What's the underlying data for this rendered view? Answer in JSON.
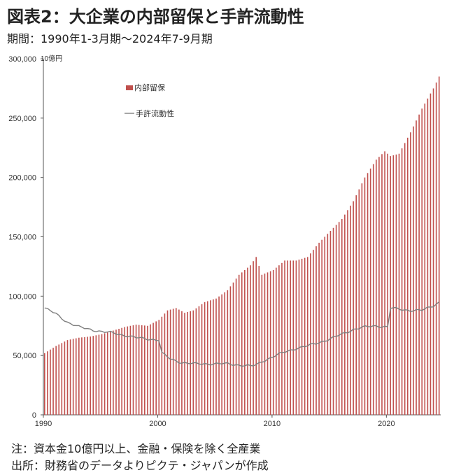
{
  "header": {
    "title": "図表2：大企業の内部留保と手許流動性",
    "subtitle": "期間：1990年1-3月期～2024年7-9月期"
  },
  "footer": {
    "note1": "注：資本金10億円以上、金融・保険を除く全産業",
    "note2": "出所：財務省のデータよりピクテ・ジャパンが作成"
  },
  "chart_data": {
    "type": "bar",
    "unit_label": "10億円",
    "ylim": [
      0,
      300000
    ],
    "y_ticks": [
      0,
      50000,
      100000,
      150000,
      200000,
      250000,
      300000
    ],
    "y_tick_labels": [
      "0",
      "50,000",
      "100,000",
      "150,000",
      "200,000",
      "250,000",
      "300,000"
    ],
    "x_range": [
      1990,
      2024.75
    ],
    "x_ticks": [
      1990,
      2000,
      2010,
      2020
    ],
    "x_tick_labels": [
      "1990",
      "2000",
      "2010",
      "2020"
    ],
    "legend_position": "top-left",
    "series": [
      {
        "name": "内部留保",
        "kind": "bar",
        "color": "#c0504d",
        "keypoints": [
          [
            1990.0,
            52000
          ],
          [
            1991.0,
            58000
          ],
          [
            1992.0,
            63000
          ],
          [
            1993.0,
            65000
          ],
          [
            1994.0,
            66000
          ],
          [
            1995.0,
            68000
          ],
          [
            1996.0,
            71000
          ],
          [
            1997.0,
            74000
          ],
          [
            1998.0,
            76000
          ],
          [
            1999.0,
            75000
          ],
          [
            2000.0,
            80000
          ],
          [
            2000.75,
            88000
          ],
          [
            2001.5,
            90000
          ],
          [
            2002.25,
            86000
          ],
          [
            2003.0,
            88000
          ],
          [
            2004.0,
            95000
          ],
          [
            2005.0,
            98000
          ],
          [
            2006.0,
            105000
          ],
          [
            2007.0,
            118000
          ],
          [
            2008.0,
            126000
          ],
          [
            2008.5,
            133000
          ],
          [
            2009.0,
            118000
          ],
          [
            2010.0,
            122000
          ],
          [
            2011.0,
            130000
          ],
          [
            2012.0,
            130000
          ],
          [
            2013.0,
            133000
          ],
          [
            2014.0,
            145000
          ],
          [
            2015.0,
            155000
          ],
          [
            2016.0,
            165000
          ],
          [
            2017.0,
            180000
          ],
          [
            2018.0,
            200000
          ],
          [
            2019.0,
            215000
          ],
          [
            2019.75,
            222000
          ],
          [
            2020.25,
            218000
          ],
          [
            2021.0,
            220000
          ],
          [
            2022.0,
            238000
          ],
          [
            2023.0,
            258000
          ],
          [
            2024.0,
            275000
          ],
          [
            2024.5,
            285000
          ]
        ]
      },
      {
        "name": "手許流動性",
        "kind": "line",
        "color": "#7f7f7f",
        "keypoints": [
          [
            1990.0,
            90000
          ],
          [
            1991.0,
            85000
          ],
          [
            1992.0,
            78000
          ],
          [
            1993.0,
            74000
          ],
          [
            1994.0,
            72000
          ],
          [
            1995.0,
            70000
          ],
          [
            1996.0,
            69000
          ],
          [
            1997.0,
            67000
          ],
          [
            1998.0,
            65000
          ],
          [
            1999.0,
            64000
          ],
          [
            2000.0,
            63000
          ],
          [
            2000.25,
            52000
          ],
          [
            2001.0,
            47000
          ],
          [
            2002.0,
            44000
          ],
          [
            2003.0,
            43000
          ],
          [
            2004.0,
            43000
          ],
          [
            2005.0,
            43000
          ],
          [
            2006.0,
            43000
          ],
          [
            2007.0,
            42000
          ],
          [
            2008.0,
            41000
          ],
          [
            2008.5,
            42000
          ],
          [
            2009.0,
            45000
          ],
          [
            2010.0,
            49000
          ],
          [
            2011.0,
            53000
          ],
          [
            2012.0,
            56000
          ],
          [
            2013.0,
            58000
          ],
          [
            2014.0,
            61000
          ],
          [
            2015.0,
            64000
          ],
          [
            2016.0,
            68000
          ],
          [
            2017.0,
            72000
          ],
          [
            2018.0,
            74000
          ],
          [
            2019.0,
            75000
          ],
          [
            2020.0,
            74000
          ],
          [
            2020.25,
            90000
          ],
          [
            2021.0,
            89000
          ],
          [
            2022.0,
            88000
          ],
          [
            2023.0,
            88000
          ],
          [
            2024.0,
            92000
          ],
          [
            2024.5,
            95000
          ]
        ]
      }
    ]
  }
}
